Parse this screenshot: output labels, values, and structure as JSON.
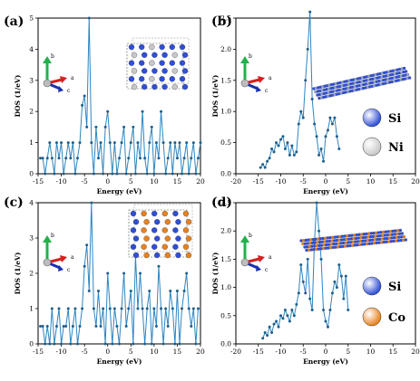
{
  "colors": {
    "line": "#2e86c1",
    "marker": "#1f5f8b",
    "si": "#2f4fd6",
    "ni": "#c8c8c8",
    "co": "#e8821e",
    "axis_b": "#22b14c",
    "axis_a": "#d62020",
    "axis_c": "#1a2fb0"
  },
  "legend_b": {
    "si": "Si",
    "ni": "Ni"
  },
  "legend_d": {
    "si": "Si",
    "co": "Co"
  },
  "chart_data": [
    {
      "panel": "(a)",
      "type": "line",
      "xlabel": "Energy (eV)",
      "ylabel": "DOS (1/eV)",
      "xlim": [
        -15,
        20
      ],
      "ylim": [
        0,
        5
      ],
      "xticks": [
        "-15",
        "-10",
        "-5",
        "0",
        "5",
        "10",
        "15",
        "20"
      ],
      "yticks": [
        "0",
        "1",
        "2",
        "3",
        "4",
        "5"
      ],
      "axis_labels": {
        "b": "b",
        "a": "a",
        "c": "c"
      },
      "x": [
        -14.5,
        -14,
        -13.5,
        -13,
        -12.5,
        -12,
        -11.5,
        -11,
        -10.5,
        -10,
        -9.5,
        -9,
        -8.5,
        -8,
        -7.5,
        -7,
        -6.5,
        -6,
        -5.5,
        -5,
        -4.5,
        -4,
        -3.5,
        -3,
        -2.5,
        -2,
        -1.5,
        -1,
        -0.5,
        0,
        0.5,
        1,
        1.5,
        2,
        2.5,
        3,
        3.5,
        4,
        4.5,
        5,
        5.5,
        6,
        6.5,
        7,
        7.5,
        8,
        8.5,
        9,
        9.5,
        10,
        10.5,
        11,
        11.5,
        12,
        12.5,
        13,
        13.5,
        14,
        14.5,
        15,
        15.5,
        16,
        16.5,
        17,
        17.5,
        18,
        18.5,
        19,
        19.5,
        20
      ],
      "values": [
        0.5,
        0.5,
        0,
        0.5,
        1,
        0.5,
        0,
        1,
        0.5,
        1,
        0,
        0.5,
        1,
        0.5,
        1,
        0,
        0.5,
        1,
        2.2,
        2.5,
        1.5,
        5,
        1,
        0,
        1.5,
        0.5,
        1,
        0,
        1.5,
        2,
        1,
        0,
        1,
        0,
        0.5,
        1,
        1.5,
        0,
        0.5,
        1,
        1.5,
        0,
        1,
        0.5,
        2,
        0.5,
        0,
        1,
        1.5,
        0,
        1,
        0.5,
        2,
        1,
        0,
        0.5,
        1,
        0,
        1,
        0.5,
        1,
        0,
        0.5,
        1,
        0,
        0.5,
        1,
        0,
        0.5,
        1
      ]
    },
    {
      "panel": "(b)",
      "type": "line",
      "xlabel": "Energy (eV)",
      "ylabel": "DOS (1/eV)",
      "xlim": [
        -20,
        20
      ],
      "ylim": [
        0,
        2.5
      ],
      "xticks": [
        "-20",
        "-15",
        "-10",
        "-5",
        "0",
        "5",
        "10",
        "15",
        "20"
      ],
      "yticks": [
        "0.0",
        "0.5",
        "1.0",
        "1.5",
        "2.0",
        "2.5"
      ],
      "axis_labels": {
        "b": "b",
        "a": "a",
        "c": "c"
      },
      "x": [
        -14.5,
        -14,
        -13.5,
        -13,
        -12.5,
        -12,
        -11.5,
        -11,
        -10.5,
        -10,
        -9.5,
        -9,
        -8.5,
        -8,
        -7.5,
        -7,
        -6.5,
        -6,
        -5.5,
        -5,
        -4.5,
        -4,
        -3.5,
        -3,
        -2.5,
        -2,
        -1.5,
        -1,
        -0.5,
        0,
        0.5,
        1,
        1.5,
        2,
        2.5,
        3
      ],
      "values": [
        0.1,
        0.15,
        0.1,
        0.2,
        0.25,
        0.4,
        0.35,
        0.5,
        0.45,
        0.55,
        0.6,
        0.4,
        0.5,
        0.3,
        0.45,
        0.3,
        0.35,
        0.8,
        1.0,
        0.9,
        1.5,
        2.0,
        2.6,
        1.2,
        0.8,
        0.6,
        0.3,
        0.4,
        0.2,
        0.6,
        0.7,
        0.9,
        0.8,
        0.9,
        0.6,
        0.4
      ]
    },
    {
      "panel": "(c)",
      "type": "line",
      "xlabel": "Energy (eV)",
      "ylabel": "DOS (1/eV)",
      "xlim": [
        -15,
        20
      ],
      "ylim": [
        0,
        4
      ],
      "xticks": [
        "-15",
        "-10",
        "-5",
        "0",
        "5",
        "10",
        "15",
        "20"
      ],
      "yticks": [
        "0",
        "1",
        "2",
        "3",
        "4"
      ],
      "axis_labels": {
        "b": "b",
        "a": "a",
        "c": "c"
      },
      "x": [
        -14.5,
        -14,
        -13.5,
        -13,
        -12.5,
        -12,
        -11.5,
        -11,
        -10.5,
        -10,
        -9.5,
        -9,
        -8.5,
        -8,
        -7.5,
        -7,
        -6.5,
        -6,
        -5.5,
        -5,
        -4.5,
        -4,
        -3.5,
        -3,
        -2.5,
        -2,
        -1.5,
        -1,
        -0.5,
        0,
        0.5,
        1,
        1.5,
        2,
        2.5,
        3,
        3.5,
        4,
        4.5,
        5,
        5.5,
        6,
        6.5,
        7,
        7.5,
        8,
        8.5,
        9,
        9.5,
        10,
        10.5,
        11,
        11.5,
        12,
        12.5,
        13,
        13.5,
        14,
        14.5,
        15,
        15.5,
        16,
        16.5,
        17,
        17.5,
        18,
        18.5,
        19,
        19.5
      ],
      "values": [
        0.5,
        0.5,
        0,
        0.5,
        0,
        1,
        0,
        0.5,
        1,
        0,
        0.5,
        0.5,
        1,
        0,
        0.5,
        1,
        0,
        0.5,
        1,
        2.2,
        2.8,
        1.5,
        4,
        1,
        0.5,
        1.5,
        0.5,
        1,
        0,
        2,
        1,
        0,
        1,
        0.5,
        0,
        1,
        2,
        0.5,
        1,
        1.5,
        0,
        2.5,
        1,
        2,
        1,
        0,
        1,
        1.5,
        0,
        1,
        0.5,
        2.2,
        1,
        0,
        1,
        0.5,
        1.5,
        1,
        0,
        1.5,
        0,
        1,
        1.5,
        2,
        1,
        0.5,
        1,
        0,
        1
      ]
    },
    {
      "panel": "(d)",
      "type": "line",
      "xlabel": "Energy (eV)",
      "ylabel": "DOS (1/eV)",
      "xlim": [
        -20,
        20
      ],
      "ylim": [
        0,
        2.5
      ],
      "xticks": [
        "-20",
        "-15",
        "-10",
        "-5",
        "0",
        "5",
        "10",
        "15",
        "20"
      ],
      "yticks": [
        "0.0",
        "0.5",
        "1.0",
        "1.5",
        "2.0",
        "2.5"
      ],
      "axis_labels": {
        "b": "b",
        "a": "a",
        "c": "c"
      },
      "x": [
        -14,
        -13.5,
        -13,
        -12.5,
        -12,
        -11.5,
        -11,
        -10.5,
        -10,
        -9.5,
        -9,
        -8.5,
        -8,
        -7.5,
        -7,
        -6.5,
        -6,
        -5.5,
        -5,
        -4.5,
        -4,
        -3.5,
        -3,
        -2.5,
        -2,
        -1.5,
        -1,
        -0.5,
        0,
        0.5,
        1,
        1.5,
        2,
        2.5,
        3,
        3.5,
        4,
        4.5,
        5
      ],
      "values": [
        0.1,
        0.2,
        0.15,
        0.3,
        0.2,
        0.35,
        0.4,
        0.3,
        0.5,
        0.45,
        0.6,
        0.5,
        0.4,
        0.6,
        0.5,
        0.7,
        0.9,
        1.4,
        1.1,
        0.9,
        1.5,
        0.8,
        0.6,
        1.8,
        2.5,
        2.0,
        1.5,
        0.6,
        0.4,
        0.3,
        0.6,
        0.9,
        1.1,
        1.0,
        1.4,
        1.2,
        0.8,
        1.2,
        0.6
      ]
    }
  ]
}
